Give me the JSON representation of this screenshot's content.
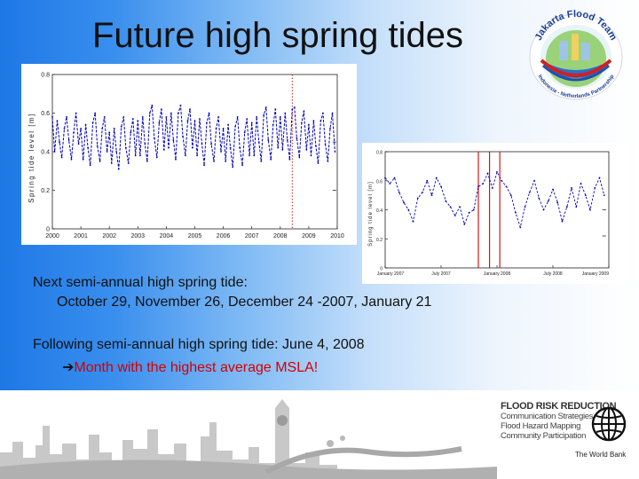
{
  "slide": {
    "title": "Future high spring tides",
    "lines": {
      "next_label": "Next semi-annual high spring tide:",
      "next_dates": "October 29, November 26, December 24 -2007, January 21",
      "following": "Following semi-annual high spring tide: June 4, 2008",
      "arrow": "➔",
      "highlight": "Month with the highest average MSLA!"
    }
  },
  "logo": {
    "top_text": "Jakarta Flood Team",
    "bottom_text": "Indonesia - Netherlands Partnership"
  },
  "footer": {
    "heading": "FLOOD RISK REDUCTION",
    "items": [
      "Communication Strategies",
      "Flood Hazard Mapping",
      "Community Participation"
    ],
    "org": "The World Bank"
  },
  "colors": {
    "series": "#0000b4",
    "marker": "#d40000",
    "highlight_text": "#d40000"
  },
  "chart_data": [
    {
      "type": "line",
      "ylabel": "Spring tide level [m]",
      "xlabel": "",
      "yticks": [
        "0",
        "0.2",
        "0.4",
        "0.6",
        "0.8"
      ],
      "ylim": [
        0,
        0.8
      ],
      "xticks": [
        "2000",
        "2001",
        "2002",
        "2003",
        "2004",
        "2005",
        "2006",
        "2007",
        "2008",
        "2009",
        "2010"
      ],
      "xlim": [
        2000,
        2010
      ],
      "marker_x": [
        2008.42
      ],
      "series": [
        {
          "name": "spring tide level",
          "x": [
            2000,
            2000.08,
            2000.17,
            2000.25,
            2000.33,
            2000.42,
            2000.5,
            2000.58,
            2000.67,
            2000.75,
            2000.83,
            2000.92,
            2001,
            2001.08,
            2001.17,
            2001.25,
            2001.33,
            2001.42,
            2001.5,
            2001.58,
            2001.67,
            2001.75,
            2001.83,
            2001.92,
            2002,
            2002.08,
            2002.17,
            2002.25,
            2002.33,
            2002.42,
            2002.5,
            2002.58,
            2002.67,
            2002.75,
            2002.83,
            2002.92,
            2003,
            2003.08,
            2003.17,
            2003.25,
            2003.33,
            2003.42,
            2003.5,
            2003.58,
            2003.67,
            2003.75,
            2003.83,
            2003.92,
            2004,
            2004.08,
            2004.17,
            2004.25,
            2004.33,
            2004.42,
            2004.5,
            2004.58,
            2004.67,
            2004.75,
            2004.83,
            2004.92,
            2005,
            2005.08,
            2005.17,
            2005.25,
            2005.33,
            2005.42,
            2005.5,
            2005.58,
            2005.67,
            2005.75,
            2005.83,
            2005.92,
            2006,
            2006.08,
            2006.17,
            2006.25,
            2006.33,
            2006.42,
            2006.5,
            2006.58,
            2006.67,
            2006.75,
            2006.83,
            2006.92,
            2007,
            2007.08,
            2007.17,
            2007.25,
            2007.33,
            2007.42,
            2007.5,
            2007.58,
            2007.67,
            2007.75,
            2007.83,
            2007.92,
            2008,
            2008.08,
            2008.17,
            2008.25,
            2008.33,
            2008.42,
            2008.5,
            2008.58,
            2008.67,
            2008.75,
            2008.83,
            2008.92,
            2009,
            2009.08,
            2009.17,
            2009.25,
            2009.33,
            2009.42,
            2009.5,
            2009.58,
            2009.67,
            2009.75,
            2009.83,
            2009.92
          ],
          "y": [
            0.58,
            0.4,
            0.56,
            0.45,
            0.37,
            0.52,
            0.58,
            0.46,
            0.36,
            0.5,
            0.6,
            0.44,
            0.52,
            0.36,
            0.54,
            0.42,
            0.33,
            0.55,
            0.6,
            0.43,
            0.35,
            0.52,
            0.58,
            0.4,
            0.5,
            0.34,
            0.52,
            0.4,
            0.31,
            0.53,
            0.58,
            0.42,
            0.34,
            0.5,
            0.57,
            0.38,
            0.56,
            0.38,
            0.58,
            0.44,
            0.35,
            0.6,
            0.64,
            0.47,
            0.37,
            0.55,
            0.62,
            0.41,
            0.58,
            0.42,
            0.6,
            0.46,
            0.36,
            0.6,
            0.64,
            0.48,
            0.38,
            0.56,
            0.62,
            0.42,
            0.56,
            0.38,
            0.57,
            0.44,
            0.33,
            0.55,
            0.6,
            0.44,
            0.35,
            0.52,
            0.58,
            0.4,
            0.52,
            0.35,
            0.54,
            0.42,
            0.32,
            0.53,
            0.58,
            0.42,
            0.33,
            0.5,
            0.57,
            0.38,
            0.55,
            0.38,
            0.58,
            0.45,
            0.35,
            0.59,
            0.63,
            0.46,
            0.36,
            0.54,
            0.62,
            0.42,
            0.58,
            0.41,
            0.6,
            0.46,
            0.36,
            0.62,
            0.63,
            0.47,
            0.37,
            0.55,
            0.61,
            0.41,
            0.54,
            0.38,
            0.56,
            0.43,
            0.34,
            0.56,
            0.6,
            0.44,
            0.35,
            0.52,
            0.6,
            0.4
          ],
          "extra_points": [
            [
              2009.9,
              0.45
            ],
            [
              2009.9,
              0.2
            ]
          ]
        }
      ]
    },
    {
      "type": "line",
      "ylabel": "Spring tide level [m]",
      "xlabel": "",
      "yticks": [
        "0",
        "0.2",
        "0.4",
        "0.6",
        "0.8"
      ],
      "ylim": [
        0,
        0.8
      ],
      "xticks": [
        "January 2007",
        "July 2007",
        "January 2008",
        "July 2008",
        "January 2009"
      ],
      "xlim": [
        0,
        24
      ],
      "marker_x": [
        10,
        11.2,
        12.3
      ],
      "series": [
        {
          "name": "spring tide level",
          "x": [
            0,
            0.5,
            1,
            1.5,
            2,
            2.5,
            3,
            3.5,
            4,
            4.5,
            5,
            5.5,
            6,
            6.5,
            7,
            7.5,
            8,
            8.5,
            9,
            9.5,
            10,
            10.5,
            11,
            11.5,
            12,
            12.5,
            13,
            13.5,
            14,
            14.5,
            15,
            15.5,
            16,
            16.5,
            17,
            17.5,
            18,
            18.5,
            19,
            19.5,
            20,
            20.5,
            21,
            21.5,
            22,
            22.5,
            23,
            23.5
          ],
          "y": [
            0.62,
            0.58,
            0.62,
            0.52,
            0.45,
            0.4,
            0.32,
            0.48,
            0.52,
            0.6,
            0.5,
            0.62,
            0.56,
            0.46,
            0.42,
            0.36,
            0.42,
            0.3,
            0.38,
            0.4,
            0.56,
            0.58,
            0.65,
            0.55,
            0.66,
            0.6,
            0.56,
            0.5,
            0.38,
            0.28,
            0.42,
            0.52,
            0.6,
            0.48,
            0.4,
            0.46,
            0.54,
            0.45,
            0.32,
            0.42,
            0.55,
            0.42,
            0.58,
            0.5,
            0.4,
            0.55,
            0.62,
            0.5
          ],
          "extra_points": [
            [
              23.5,
              0.4
            ],
            [
              23.5,
              0.22
            ]
          ]
        }
      ]
    }
  ]
}
